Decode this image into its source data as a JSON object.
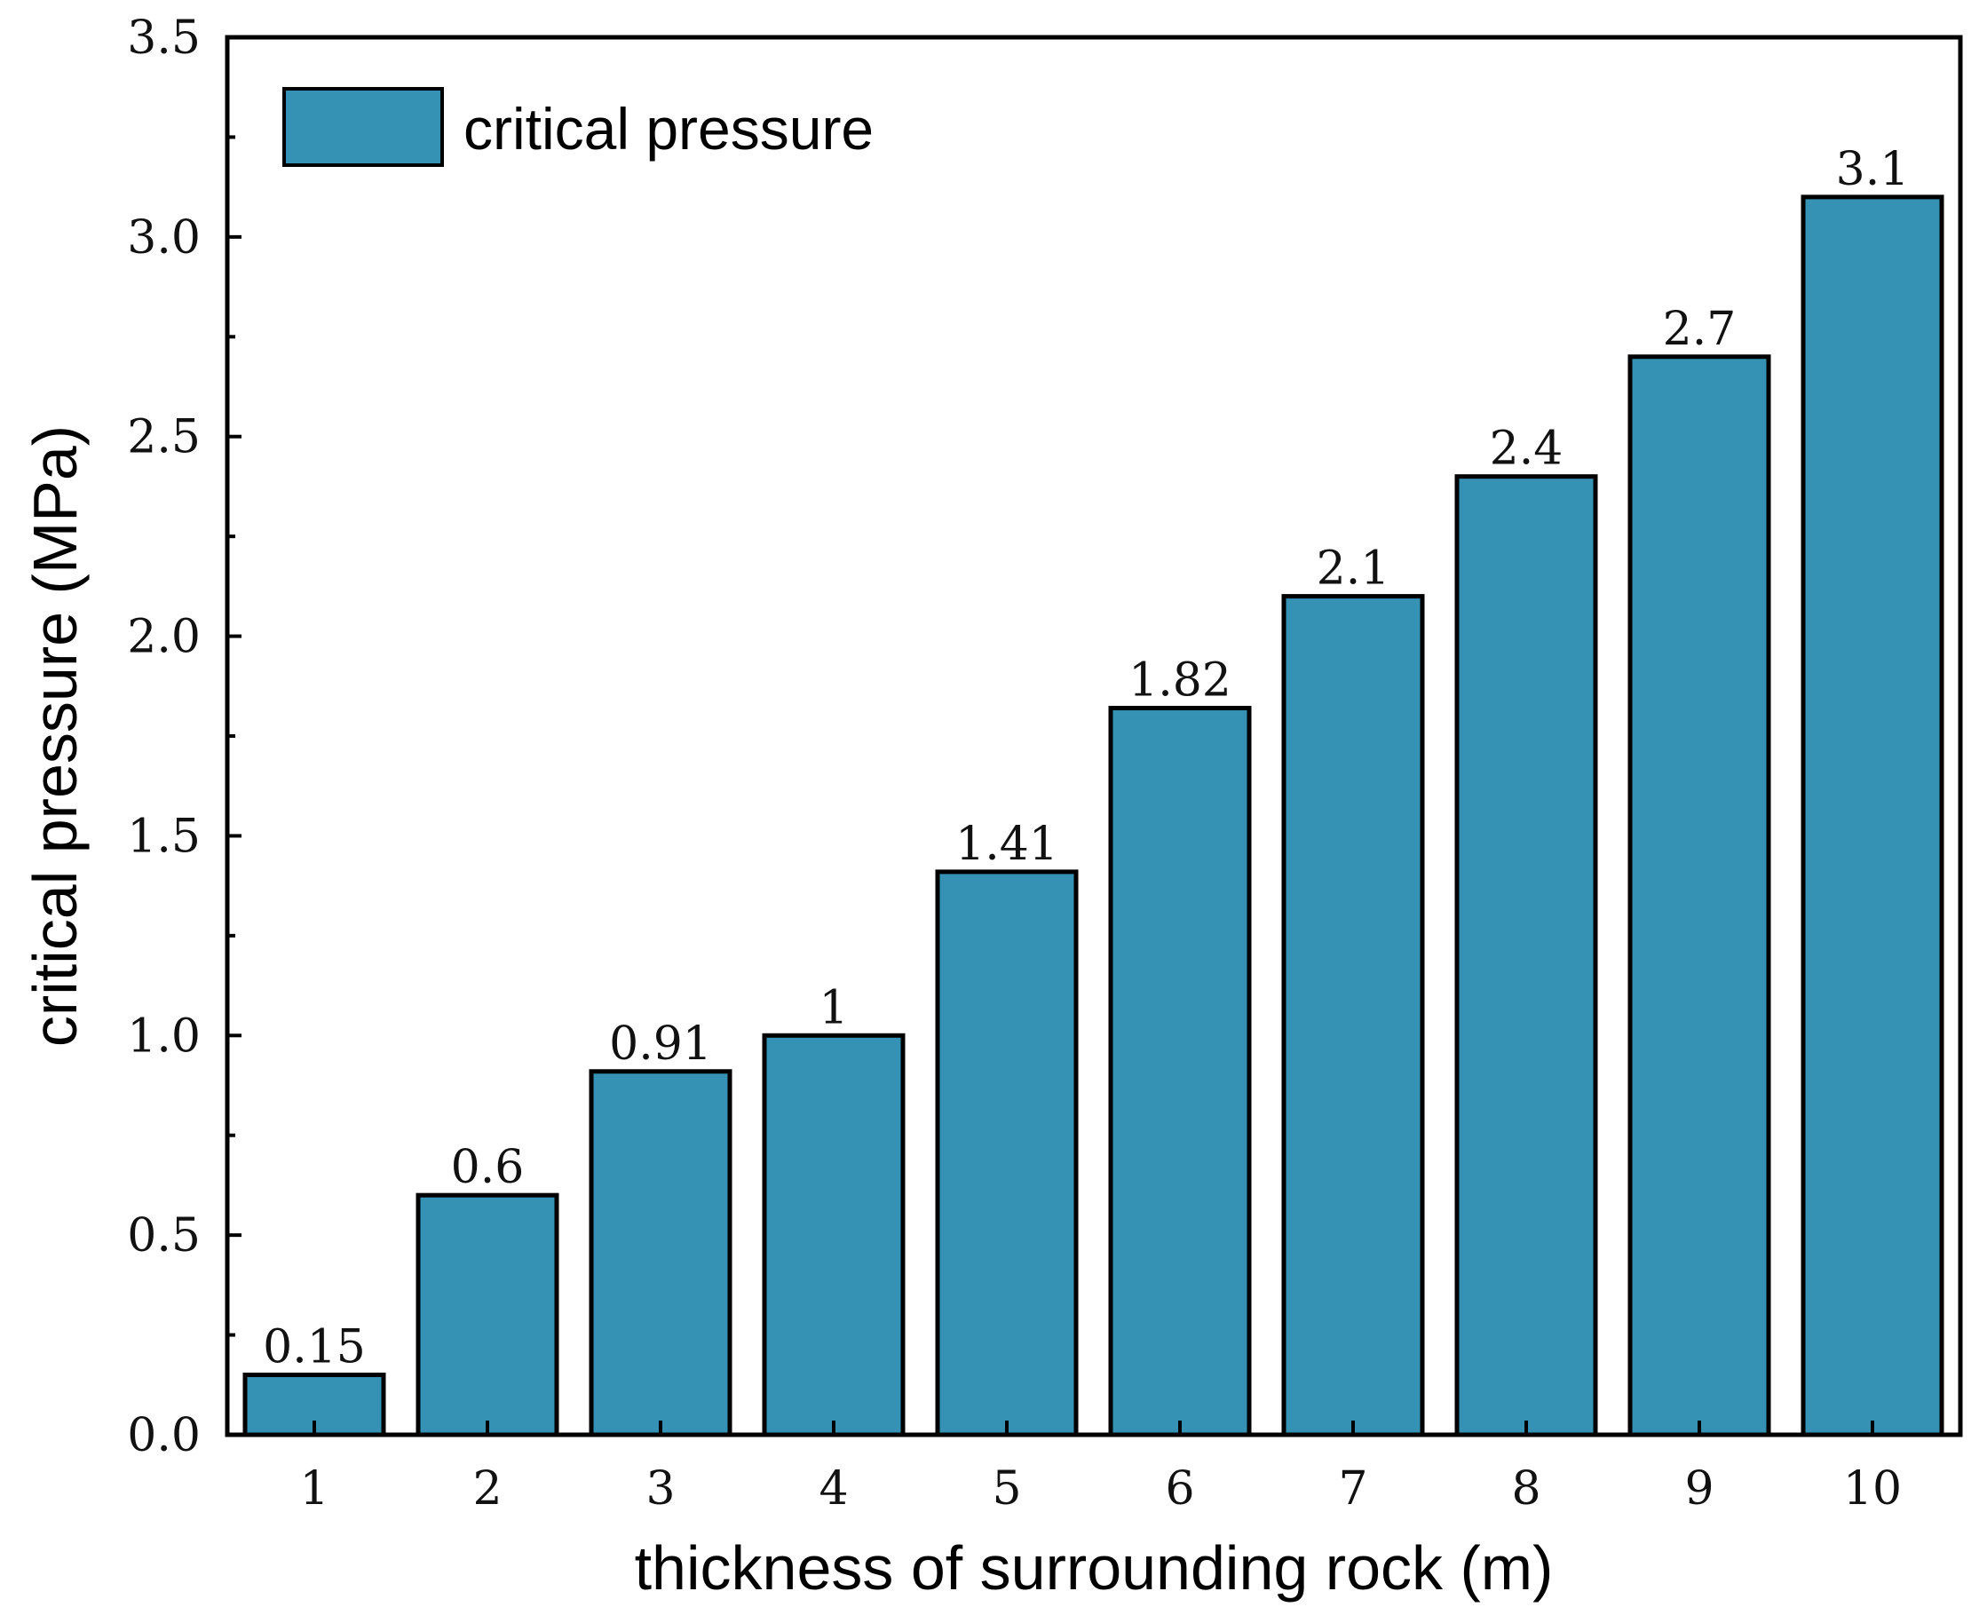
{
  "chart_data": {
    "type": "bar",
    "categories": [
      "1",
      "2",
      "3",
      "4",
      "5",
      "6",
      "7",
      "8",
      "9",
      "10"
    ],
    "series": [
      {
        "name": "critical pressure",
        "values": [
          0.15,
          0.6,
          0.91,
          1,
          1.41,
          1.82,
          2.1,
          2.4,
          2.7,
          3.1
        ],
        "labels": [
          "0.15",
          "0.6",
          "0.91",
          "1",
          "1.41",
          "1.82",
          "2.1",
          "2.4",
          "2.7",
          "3.1"
        ]
      }
    ],
    "title": "",
    "xlabel": "thickness of surrounding rock (m)",
    "ylabel": "critical pressure (MPa)",
    "ylim": [
      0,
      3.5
    ],
    "yticks": [
      0.0,
      0.5,
      1.0,
      1.5,
      2.0,
      2.5,
      3.0,
      3.5
    ],
    "ytick_labels": [
      "0.0",
      "0.5",
      "1.0",
      "1.5",
      "2.0",
      "2.5",
      "3.0",
      "3.5"
    ],
    "legend": {
      "position": "top-left",
      "label": "critical pressure"
    },
    "grid": false,
    "bar_color": "#3592b4",
    "edge_color": "#000000"
  }
}
